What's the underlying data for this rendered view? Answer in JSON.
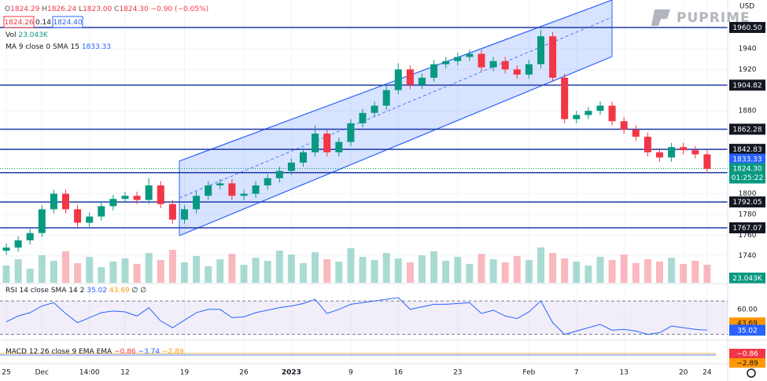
{
  "header": {
    "ohlc": [
      "O",
      "1824.29",
      "H",
      "1826.24",
      "L",
      "1823.00",
      "C",
      "1824.30",
      "−0.90 (−0.05%)"
    ],
    "bid": "1824.26",
    "spread": "0.14",
    "ask": "1824.40",
    "vol_label": "Vol",
    "vol_value": "23.043K",
    "ma_label": "MA 9 close 0 SMA 15",
    "ma_value": "1833.33",
    "currency": "USD",
    "logo": "PUPRIME"
  },
  "chart_data": [
    {
      "type": "candlestick",
      "categories": [
        "25",
        null,
        null,
        "Dec",
        null,
        null,
        null,
        "14:00",
        null,
        null,
        "12",
        null,
        null,
        null,
        null,
        "19",
        null,
        null,
        null,
        null,
        "26",
        null,
        null,
        null,
        "2023",
        null,
        null,
        null,
        null,
        "9",
        null,
        null,
        null,
        "16",
        null,
        null,
        null,
        null,
        "23",
        null,
        null,
        null,
        null,
        null,
        "Feb",
        null,
        null,
        null,
        "7",
        null,
        null,
        null,
        "13",
        null,
        null,
        null,
        null,
        "20",
        null,
        "24"
      ],
      "open": [
        1745,
        1748,
        1755,
        1762,
        1785,
        1800,
        1785,
        1772,
        1778,
        1788,
        1795,
        1798,
        1794,
        1808,
        1790,
        1775,
        1785,
        1798,
        1808,
        1810,
        1798,
        1800,
        1808,
        1815,
        1822,
        1830,
        1840,
        1858,
        1840,
        1850,
        1868,
        1878,
        1885,
        1900,
        1920,
        1905,
        1912,
        1925,
        1928,
        1932,
        1935,
        1922,
        1928,
        1920,
        1915,
        1925,
        1952,
        1912,
        1872,
        1876,
        1880,
        1885,
        1870,
        1862,
        1855,
        1840,
        1835,
        1845,
        1842,
        1838
      ],
      "high": [
        1752,
        1759,
        1766,
        1789,
        1804,
        1804,
        1789,
        1782,
        1792,
        1799,
        1802,
        1802,
        1815,
        1812,
        1794,
        1789,
        1802,
        1812,
        1814,
        1814,
        1804,
        1812,
        1819,
        1826,
        1834,
        1844,
        1866,
        1862,
        1854,
        1872,
        1882,
        1889,
        1904,
        1926,
        1924,
        1916,
        1929,
        1932,
        1936,
        1939,
        1939,
        1932,
        1932,
        1924,
        1929,
        1958,
        1956,
        1916,
        1880,
        1884,
        1889,
        1889,
        1874,
        1866,
        1859,
        1844,
        1849,
        1849,
        1846,
        1842
      ],
      "low": [
        1741,
        1744,
        1751,
        1758,
        1781,
        1781,
        1768,
        1768,
        1774,
        1784,
        1791,
        1790,
        1790,
        1786,
        1771,
        1771,
        1781,
        1794,
        1804,
        1794,
        1794,
        1796,
        1804,
        1811,
        1818,
        1826,
        1836,
        1836,
        1836,
        1846,
        1864,
        1874,
        1881,
        1896,
        1901,
        1901,
        1908,
        1921,
        1924,
        1928,
        1918,
        1918,
        1916,
        1911,
        1911,
        1921,
        1908,
        1868,
        1868,
        1872,
        1876,
        1866,
        1858,
        1851,
        1836,
        1831,
        1831,
        1838,
        1834,
        1820
      ],
      "close": [
        1748,
        1755,
        1762,
        1785,
        1800,
        1785,
        1772,
        1778,
        1788,
        1795,
        1798,
        1794,
        1808,
        1790,
        1775,
        1785,
        1798,
        1808,
        1810,
        1798,
        1800,
        1808,
        1815,
        1822,
        1830,
        1840,
        1858,
        1840,
        1850,
        1868,
        1878,
        1885,
        1900,
        1920,
        1905,
        1912,
        1925,
        1928,
        1932,
        1935,
        1922,
        1928,
        1920,
        1915,
        1925,
        1952,
        1912,
        1872,
        1876,
        1880,
        1885,
        1870,
        1862,
        1855,
        1840,
        1835,
        1845,
        1842,
        1838,
        1824
      ],
      "up_color": "#089981",
      "down_color": "#f23645",
      "ylim": [
        1714,
        1987
      ],
      "yticks": [
        1740,
        1760,
        1780,
        1800,
        1880,
        1920,
        1940
      ],
      "grid": true,
      "levels": [
        {
          "value": 1960.5,
          "label": "1960.50"
        },
        1904.82,
        1862.28,
        1842.83,
        1820.36,
        1792.05,
        1767.07
      ],
      "level_color": "#1c3aa9",
      "current_price": {
        "value": 1824.3,
        "label": "1824.30"
      },
      "countdown": "01:25:22",
      "sma_tag": {
        "value": 1833.33,
        "label": "1833.33"
      }
    },
    {
      "type": "bar",
      "name": "Vol",
      "values": [
        22,
        30,
        18,
        35,
        28,
        40,
        25,
        33,
        20,
        27,
        31,
        24,
        38,
        29,
        42,
        26,
        34,
        21,
        30,
        37,
        23,
        32,
        28,
        41,
        36,
        25,
        39,
        30,
        27,
        44,
        33,
        29,
        38,
        31,
        26,
        35,
        40,
        28,
        33,
        24,
        37,
        30,
        26,
        34,
        29,
        45,
        38,
        31,
        27,
        22,
        33,
        29,
        36,
        25,
        30,
        27,
        32,
        24,
        28,
        23.043
      ],
      "value_label": "23.043K",
      "ylim": [
        0,
        70
      ],
      "up_color": "rgba(8,153,129,0.35)",
      "down_color": "rgba(242,54,69,0.35)"
    },
    {
      "type": "line",
      "title": "RSI 14 close SMA 14 2",
      "legend_values": [
        "35.02",
        "43.69",
        "∅ ∅"
      ],
      "values": [
        45,
        52,
        56,
        64,
        68,
        55,
        44,
        50,
        56,
        58,
        57,
        52,
        62,
        46,
        38,
        47,
        56,
        60,
        60,
        50,
        51,
        56,
        59,
        62,
        64,
        67,
        72,
        55,
        60,
        66,
        68,
        70,
        72,
        74,
        60,
        63,
        66,
        66,
        67,
        68,
        55,
        59,
        52,
        49,
        57,
        70,
        44,
        30,
        34,
        38,
        42,
        35,
        36,
        34,
        30,
        32,
        40,
        38,
        36,
        35.02
      ],
      "color": "#2962ff",
      "ylim": [
        24,
        89
      ],
      "yticks": [
        {
          "value": 60,
          "label": "60.00"
        }
      ],
      "band": [
        30,
        70
      ],
      "tags": [
        {
          "value": 43.69,
          "label": "43.69"
        },
        {
          "value": 35.02,
          "label": "35.02"
        }
      ]
    },
    {
      "type": "macd",
      "title": "MACD 12 26 close 9 EMA EMA",
      "legend_values": [
        "−0.86",
        "−3.74",
        "−2.89"
      ],
      "tags": [
        "−0.86",
        "−2.89"
      ]
    }
  ]
}
